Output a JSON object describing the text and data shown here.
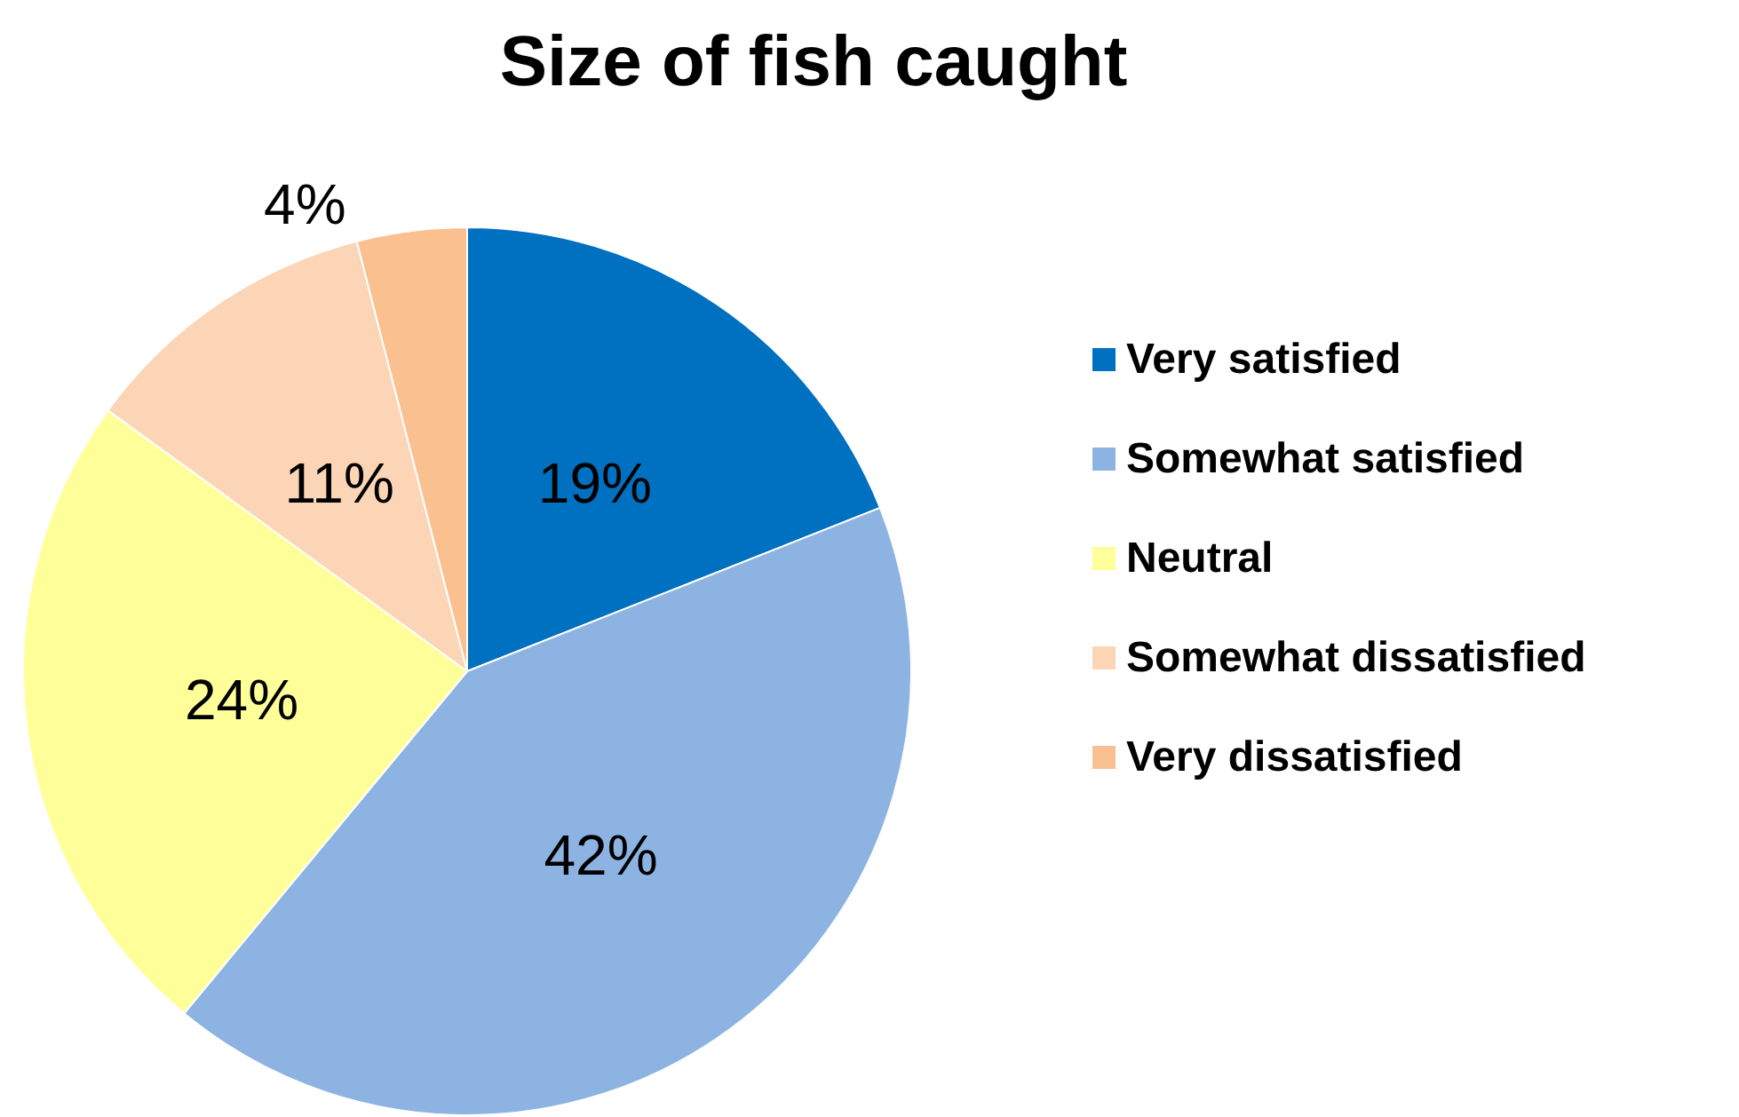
{
  "chart_data": {
    "type": "pie",
    "title": "Size of fish caught",
    "categories": [
      "Very satisfied",
      "Somewhat satisfied",
      "Neutral",
      "Somewhat dissatisfied",
      "Very dissatisfied"
    ],
    "values": [
      19,
      42,
      24,
      11,
      4
    ],
    "colors": [
      "#0070c0",
      "#8db3e2",
      "#ffff99",
      "#fbd5b5",
      "#fac090"
    ],
    "value_labels": [
      "19%",
      "42%",
      "24%",
      "11%",
      "4%"
    ],
    "legend": "right"
  }
}
